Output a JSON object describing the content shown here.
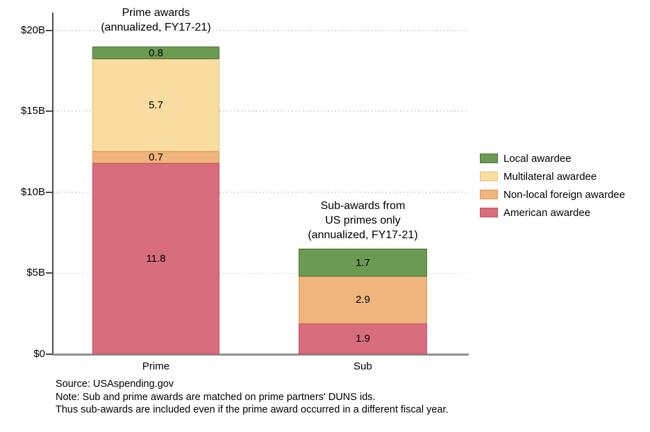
{
  "figure": {
    "background": "#ffffff"
  },
  "chart_data": {
    "type": "bar",
    "stacked": true,
    "title": "",
    "xlabel": "",
    "ylabel": "",
    "categories": [
      "Prime",
      "Sub"
    ],
    "series": [
      {
        "name": "American awardee",
        "color": "#d76d7d",
        "border_color": "#c24f60",
        "values": [
          11.8,
          1.9
        ]
      },
      {
        "name": "Non-local foreign awardee",
        "color": "#f0b47d",
        "border_color": "#e0995c",
        "values": [
          0.7,
          2.9
        ]
      },
      {
        "name": "Multilateral awardee",
        "color": "#f9dda0",
        "border_color": "#e6c172",
        "values": [
          5.7,
          0
        ]
      },
      {
        "name": "Local awardee",
        "color": "#6b9b53",
        "border_color": "#48713a",
        "values": [
          0.8,
          1.7
        ]
      }
    ],
    "totals": [
      19.0,
      6.5
    ],
    "bar_titles": [
      [
        "Prime awards",
        "(annualized, FY17-21)"
      ],
      [
        "Sub-awards from",
        "US primes only",
        "(annualized, FY17-21)"
      ]
    ],
    "y_ticks": [
      {
        "value": 0,
        "label": "$0"
      },
      {
        "value": 5,
        "label": "$5B"
      },
      {
        "value": 10,
        "label": "$10B"
      },
      {
        "value": 15,
        "label": "$15B"
      },
      {
        "value": 20,
        "label": "$20B"
      }
    ],
    "ylim": [
      0,
      20
    ],
    "grid": "horizontal-dotted",
    "legend_position": "right",
    "legend": [
      "Local awardee",
      "Multilateral awardee",
      "Non-local foreign awardee",
      "American awardee"
    ],
    "axis_colors": {
      "y_axis": "#4a4a4a",
      "x_axis": "#8f8f8f",
      "gridline": "#c8c8c8",
      "text": "#000000"
    }
  },
  "notes": {
    "source": "Source: USAspending.gov",
    "line1": "Note: Sub and prime awards are matched on prime partners' DUNS ids.",
    "line2": "Thus sub-awards are included even if the prime award occurred in a different fiscal year."
  }
}
